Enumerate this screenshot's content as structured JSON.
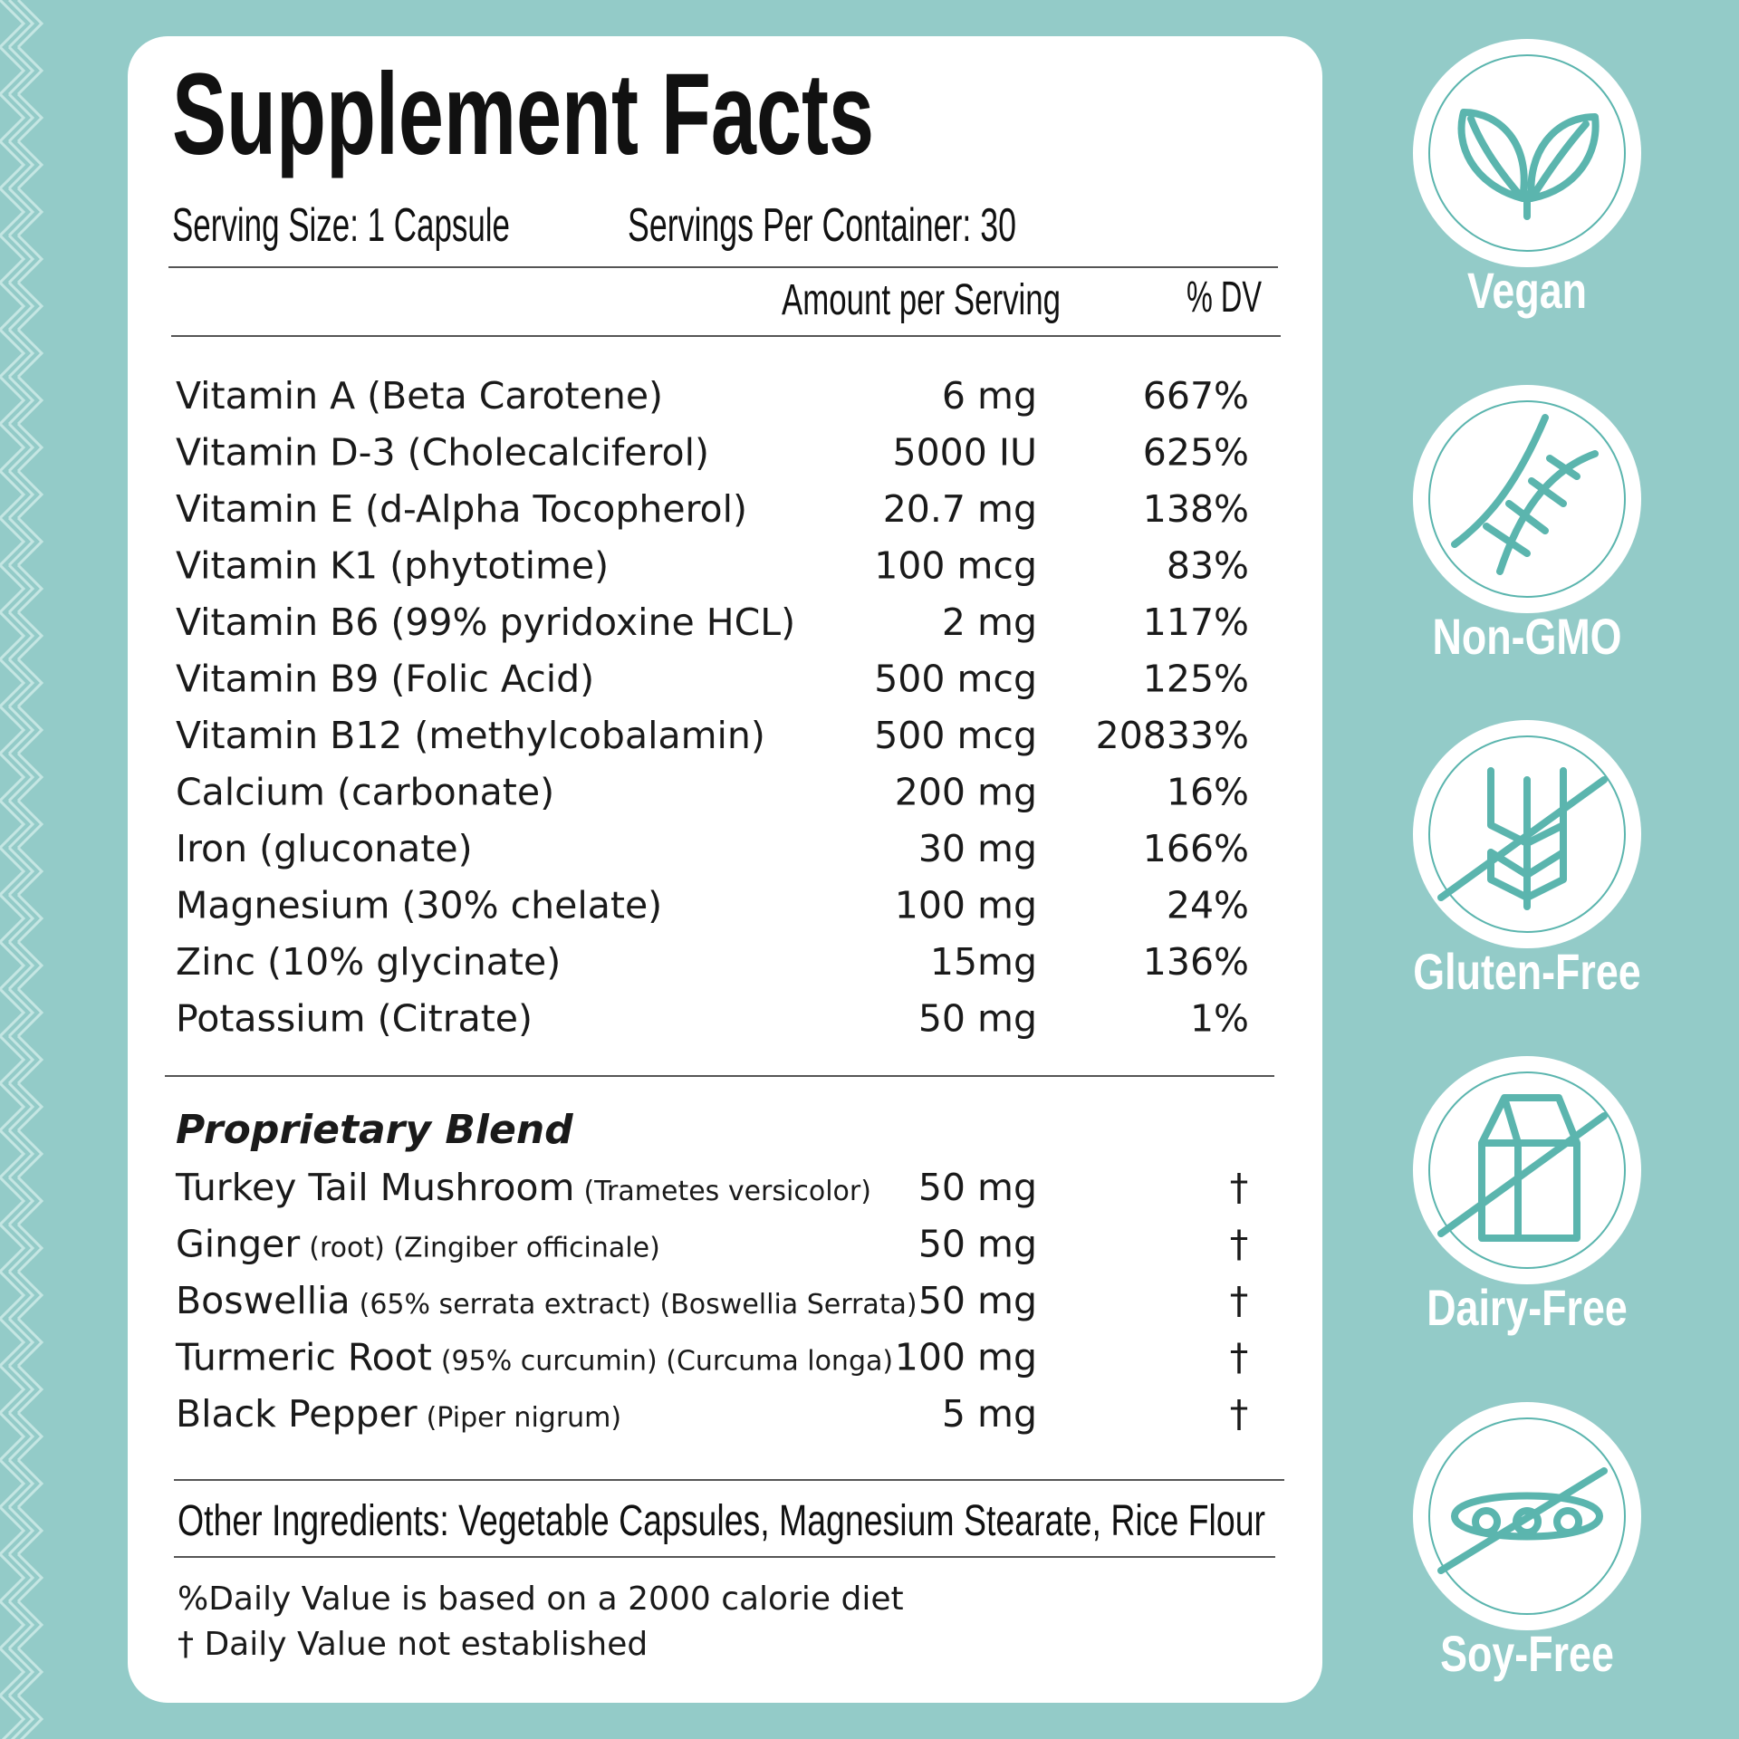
{
  "title": "Supplement Facts",
  "serving_size": "Serving Size: 1 Capsule",
  "servings_per_container": "Servings Per Container: 30",
  "header": {
    "amount": "Amount per Serving",
    "dv": "% DV"
  },
  "nutrients": [
    [
      "Vitamin A (Beta Carotene)",
      "6 mg",
      "667%"
    ],
    [
      "Vitamin D-3 (Cholecalciferol)",
      "5000 IU",
      "625%"
    ],
    [
      "Vitamin E (d-Alpha Tocopherol)",
      "20.7 mg",
      "138%"
    ],
    [
      "Vitamin K1 (phytotime)",
      "100 mcg",
      "83%"
    ],
    [
      "Vitamin B6 (99% pyridoxine HCL)",
      "2 mg",
      "117%"
    ],
    [
      "Vitamin B9 (Folic Acid)",
      "500 mcg",
      "125%"
    ],
    [
      "Vitamin B12 (methylcobalamin)",
      "500 mcg",
      "20833%"
    ],
    [
      "Calcium (carbonate)",
      "200 mg",
      "16%"
    ],
    [
      "Iron (gluconate)",
      "30 mg",
      "166%"
    ],
    [
      "Magnesium (30% chelate)",
      "100 mg",
      "24%"
    ],
    [
      "Zinc (10% glycinate)",
      "15mg",
      "136%"
    ],
    [
      "Potassium (Citrate)",
      "50 mg",
      "1%"
    ]
  ],
  "blend": {
    "title": "Proprietary Blend",
    "rows": [
      [
        "Turkey Tail Mushroom",
        "(Trametes versicolor)",
        "50 mg",
        "†"
      ],
      [
        "Ginger",
        "(root)  (Zingiber officinale)",
        "50 mg",
        "†"
      ],
      [
        "Boswellia",
        "(65% serrata extract)  (Boswellia Serrata)",
        "50 mg",
        "†"
      ],
      [
        "Turmeric Root",
        "(95% curcumin) (Curcuma longa)",
        "100 mg",
        "†"
      ],
      [
        "Black Pepper",
        "(Piper nigrum)",
        "5 mg",
        "†"
      ]
    ]
  },
  "other_ingredients": "Other Ingredients:  Vegetable Capsules, Magnesium Stearate, Rice Flour",
  "footnotes": [
    "%Daily Value is based on a 2000 calorie diet",
    "† Daily Value not established"
  ],
  "badges": [
    "Vegan",
    "Non-GMO",
    "Gluten-Free",
    "Dairy-Free",
    "Soy-Free"
  ]
}
